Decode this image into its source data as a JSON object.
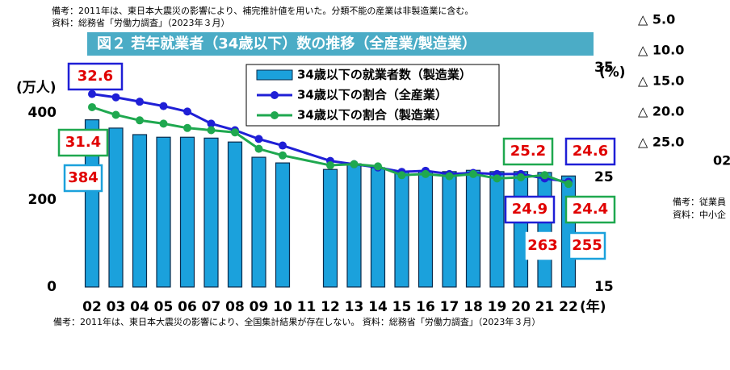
{
  "chart_data": {
    "type": "bar-line",
    "title": "図２ 若年就業者（34歳以下）数の推移（全産業/製造業）",
    "note_top": "備考：2011年は、東日本大震災の影響により、補完推計値を用いた。分類不能の産業は非製造業に含む。",
    "source_top": "資料：総務省「労働力調査」（2023年３月）",
    "note_bottom": "備考：2011年は、東日本大震災の影響により、全国集計結果が存在しない。 資料：総務省「労働力調査」（2023年３月）",
    "y_label": "(万人)",
    "y2_label": "(%)",
    "x_label": "(年)",
    "categories": [
      "02",
      "03",
      "04",
      "05",
      "06",
      "07",
      "08",
      "09",
      "10",
      "11",
      "12",
      "13",
      "14",
      "15",
      "16",
      "17",
      "18",
      "19",
      "20",
      "21",
      "22"
    ],
    "ylim": [
      0,
      500
    ],
    "yticks": [
      0,
      200,
      400
    ],
    "y2lim": [
      15,
      35
    ],
    "y2ticks": [
      15,
      25,
      35
    ],
    "series": [
      {
        "name": "34歳以下の就業者数（製造業）",
        "type": "bar",
        "color": "#1ba1dc",
        "values": [
          384,
          365,
          350,
          344,
          344,
          342,
          333,
          298,
          285,
          null,
          270,
          283,
          274,
          265,
          265,
          265,
          268,
          265,
          265,
          263,
          255
        ]
      },
      {
        "name": "34歳以下の割合（全産業）",
        "type": "line",
        "axis": "y2",
        "color": "#1f1fd6",
        "values": [
          32.6,
          32.3,
          31.9,
          31.5,
          31.0,
          29.9,
          29.3,
          28.5,
          27.9,
          null,
          26.5,
          26.2,
          25.9,
          25.5,
          25.6,
          25.3,
          25.4,
          25.3,
          25.3,
          24.9,
          24.6
        ]
      },
      {
        "name": "34歳以下の割合（製造業）",
        "type": "line",
        "axis": "y2",
        "color": "#1fa84f",
        "values": [
          31.4,
          30.7,
          30.2,
          29.9,
          29.5,
          29.3,
          29.1,
          27.6,
          27.0,
          null,
          26.1,
          26.2,
          26.0,
          25.2,
          25.3,
          25.1,
          25.3,
          24.9,
          25.0,
          25.2,
          24.4
        ]
      }
    ],
    "side_fragments": [
      "△ 5.0",
      "△ 10.0",
      "△ 15.0",
      "△ 20.0",
      "△ 25.0",
      "02",
      "備考：従業員",
      "資料：中小企"
    ]
  }
}
